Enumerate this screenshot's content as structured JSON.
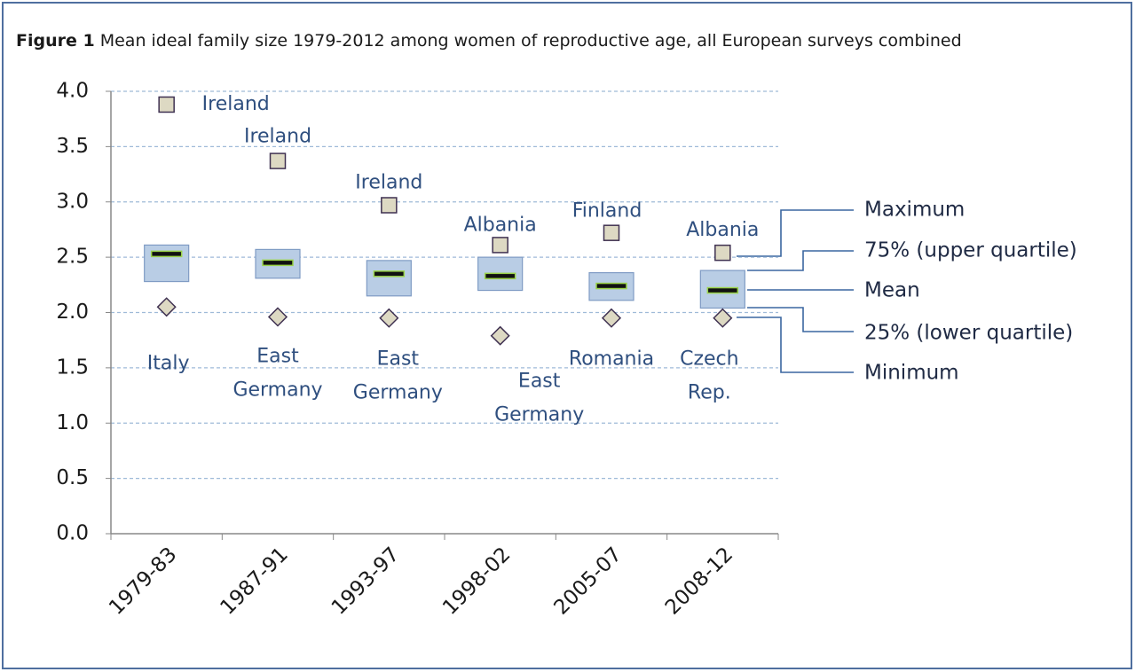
{
  "chart_data": {
    "type": "box",
    "caption_label": "Figure 1",
    "title": "Mean ideal family size 1979-2012 among women of reproductive age, all European surveys combined",
    "categories": [
      "1979-83",
      "1987-91",
      "1993-97",
      "1998-02",
      "2005-07",
      "2008-12"
    ],
    "max": [
      3.88,
      3.37,
      2.97,
      2.61,
      2.72,
      2.54
    ],
    "q3": [
      2.61,
      2.57,
      2.47,
      2.5,
      2.36,
      2.38
    ],
    "mean": [
      2.53,
      2.45,
      2.35,
      2.33,
      2.24,
      2.2
    ],
    "q1": [
      2.28,
      2.31,
      2.15,
      2.2,
      2.11,
      2.04
    ],
    "min": [
      2.05,
      1.96,
      1.95,
      1.79,
      1.95,
      1.95
    ],
    "max_labels": [
      [
        "Ireland"
      ],
      [
        "Ireland"
      ],
      [
        "Ireland"
      ],
      [
        "Albania"
      ],
      [
        "Finland"
      ],
      [
        "Albania"
      ]
    ],
    "min_labels": [
      [
        "Italy"
      ],
      [
        "East",
        "Germany"
      ],
      [
        "East",
        "Germany"
      ],
      [
        "East",
        "Germany"
      ],
      [
        "Romania"
      ],
      [
        "Czech",
        "Rep."
      ]
    ],
    "legend": [
      "Maximum",
      "75% (upper quartile)",
      "Mean",
      "25% (lower quartile)",
      "Minimum"
    ],
    "ylim": [
      0,
      4
    ],
    "yticks": [
      {
        "value": 0,
        "label": "0.0"
      },
      {
        "value": 0.5,
        "label": "0.5"
      },
      {
        "value": 1,
        "label": "1.0"
      },
      {
        "value": 1.5,
        "label": "1.5"
      },
      {
        "value": 2,
        "label": "2.0"
      },
      {
        "value": 2.5,
        "label": "2.5"
      },
      {
        "value": 3,
        "label": "3.0"
      },
      {
        "value": 3.5,
        "label": "3.5"
      },
      {
        "value": 4,
        "label": "4.0"
      }
    ],
    "grid": true,
    "box_color": "#b9cde5",
    "marker_color": "#ddd9c3"
  }
}
